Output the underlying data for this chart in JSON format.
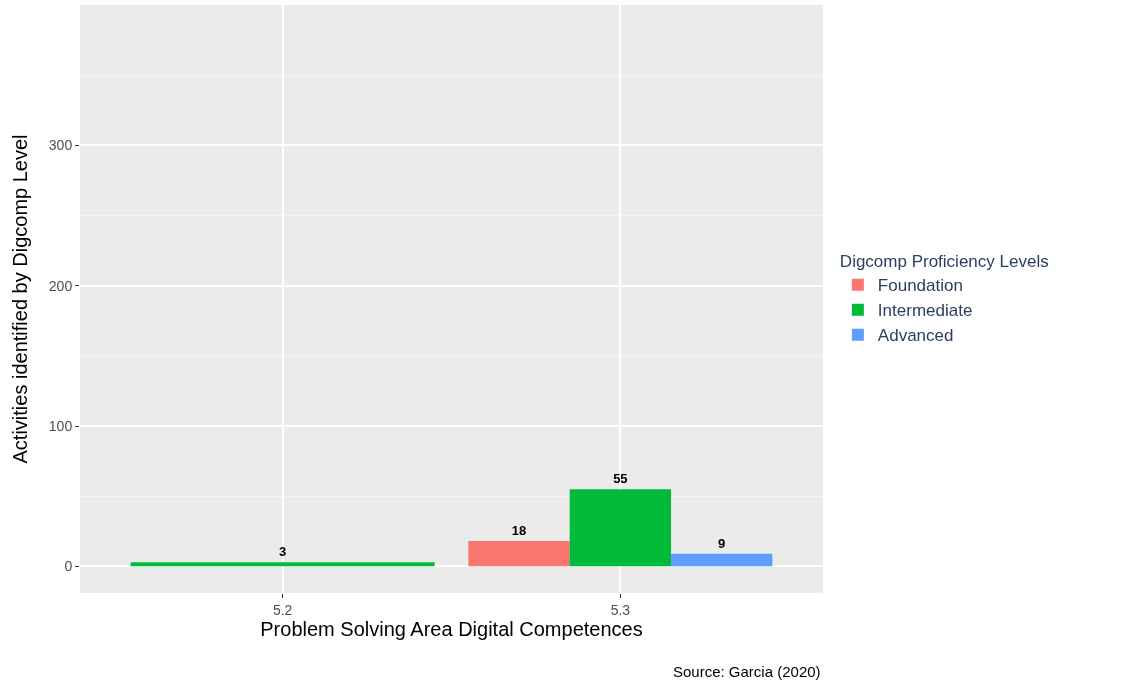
{
  "chart_data": {
    "type": "bar",
    "xlabel": "Problem Solving Area Digital Competences",
    "ylabel": "Activities identified by Digcomp Level",
    "legend_title": "Digcomp Proficiency Levels",
    "categories": [
      "5.2",
      "5.3"
    ],
    "series": [
      {
        "name": "Foundation",
        "color": "#f8766d",
        "values": [
          null,
          18
        ]
      },
      {
        "name": "Intermediate",
        "color": "#00ba38",
        "values": [
          3,
          55
        ]
      },
      {
        "name": "Advanced",
        "color": "#619cff",
        "values": [
          null,
          9
        ]
      }
    ],
    "ylim": [
      -19,
      400
    ],
    "yticks": [
      0,
      100,
      200,
      300
    ],
    "grid": true,
    "legend": "right",
    "data_labels": true,
    "annotations": [
      "Source: Garcia (2020)"
    ]
  }
}
